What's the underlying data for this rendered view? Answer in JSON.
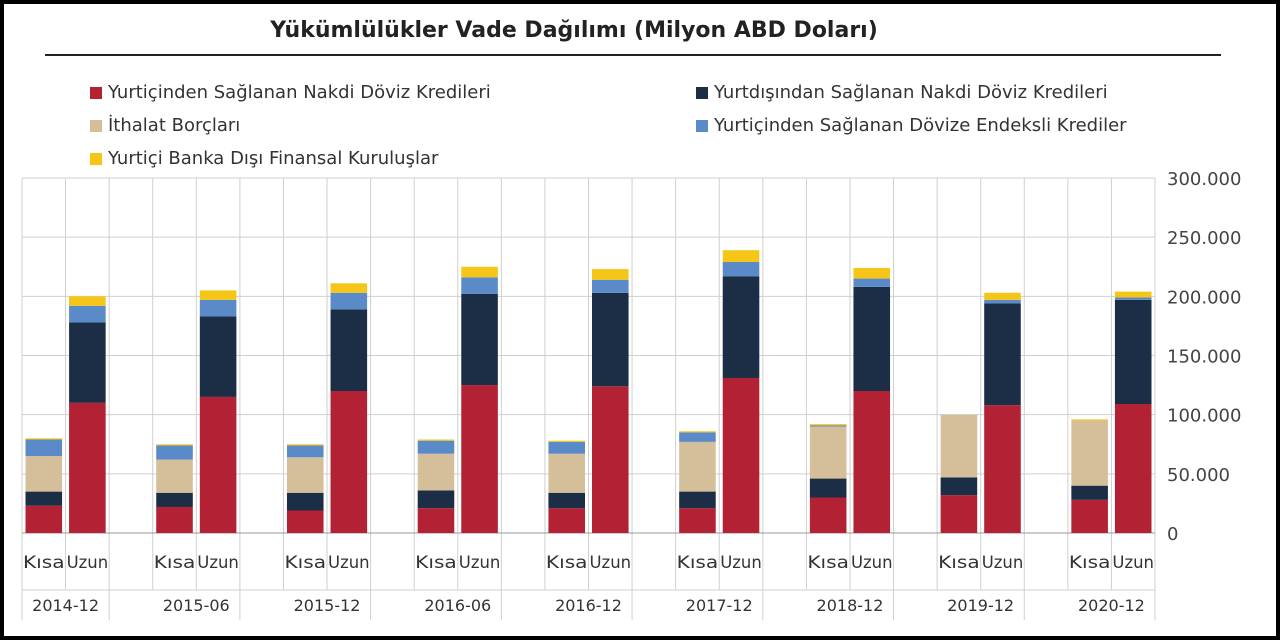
{
  "chart_data": {
    "type": "bar",
    "stacked": true,
    "title": "Yükümlülükler Vade Dağılımı (Milyon ABD Doları)",
    "groups": [
      "2014-12",
      "2015-06",
      "2015-12",
      "2016-06",
      "2016-12",
      "2017-12",
      "2018-12",
      "2019-12",
      "2020-12"
    ],
    "sub_categories": [
      "Kısa",
      "Uzun"
    ],
    "ylim": [
      0,
      300000
    ],
    "yticks": [
      "0",
      "50.000",
      "100.000",
      "150.000",
      "200.000",
      "250.000",
      "300.000"
    ],
    "grid": true,
    "legend_position": "top",
    "series": [
      {
        "name": "Yurtiçinden Sağlanan Nakdi Döviz Kredileri",
        "color": "#b22234",
        "values": [
          [
            23000,
            110000
          ],
          [
            22000,
            115000
          ],
          [
            19000,
            120000
          ],
          [
            21000,
            125000
          ],
          [
            21000,
            124000
          ],
          [
            21000,
            131000
          ],
          [
            30000,
            120000
          ],
          [
            32000,
            108000
          ],
          [
            28000,
            109000
          ]
        ]
      },
      {
        "name": "Yurtdışından Sağlanan Nakdi Döviz Kredileri",
        "color": "#1c2e45",
        "values": [
          [
            12000,
            68000
          ],
          [
            12000,
            68000
          ],
          [
            15000,
            69000
          ],
          [
            15000,
            77000
          ],
          [
            13000,
            79000
          ],
          [
            14000,
            86000
          ],
          [
            16000,
            88000
          ],
          [
            15000,
            86000
          ],
          [
            12000,
            88000
          ]
        ]
      },
      {
        "name": "İthalat Borçları",
        "color": "#d5bf9a",
        "values": [
          [
            30000,
            0
          ],
          [
            28000,
            0
          ],
          [
            30000,
            0
          ],
          [
            31000,
            0
          ],
          [
            33000,
            0
          ],
          [
            42000,
            0
          ],
          [
            44000,
            0
          ],
          [
            53000,
            0
          ],
          [
            55000,
            0
          ]
        ]
      },
      {
        "name": "Yurtiçinden Sağlanan Dövize Endeksli Krediler",
        "color": "#5b8ac9",
        "values": [
          [
            14000,
            14000
          ],
          [
            12000,
            14000
          ],
          [
            10000,
            14000
          ],
          [
            11000,
            14000
          ],
          [
            10000,
            11000
          ],
          [
            8000,
            12000
          ],
          [
            1000,
            7000
          ],
          [
            0,
            3000
          ],
          [
            0,
            2000
          ]
        ]
      },
      {
        "name": "Yurtiçi Banka Dışı Finansal Kuruluşlar",
        "color": "#f5c518",
        "values": [
          [
            1000,
            8000
          ],
          [
            1000,
            8000
          ],
          [
            1000,
            8000
          ],
          [
            1000,
            9000
          ],
          [
            1000,
            9000
          ],
          [
            1000,
            10000
          ],
          [
            1000,
            9000
          ],
          [
            0,
            6000
          ],
          [
            1000,
            5000
          ]
        ]
      }
    ]
  }
}
